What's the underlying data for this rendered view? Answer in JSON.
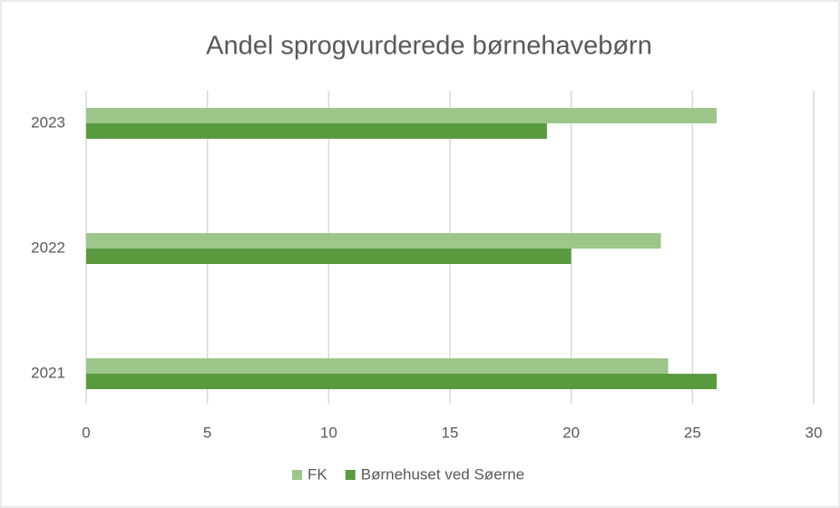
{
  "chart_data": {
    "type": "hbar",
    "title": "Andel sprogvurderede børnehavebørn",
    "categories": [
      "2021",
      "2022",
      "2023"
    ],
    "series": [
      {
        "name": "FK",
        "color": "#9dc68a",
        "values": [
          24,
          23.7,
          26
        ]
      },
      {
        "name": "Børnehuset ved Søerne",
        "color": "#5a9a3e",
        "values": [
          26,
          20,
          19
        ]
      }
    ],
    "xlim": [
      0,
      30
    ],
    "xticks": [
      0,
      5,
      10,
      15,
      20,
      25,
      30
    ],
    "grid": true,
    "legend": "bottom"
  }
}
